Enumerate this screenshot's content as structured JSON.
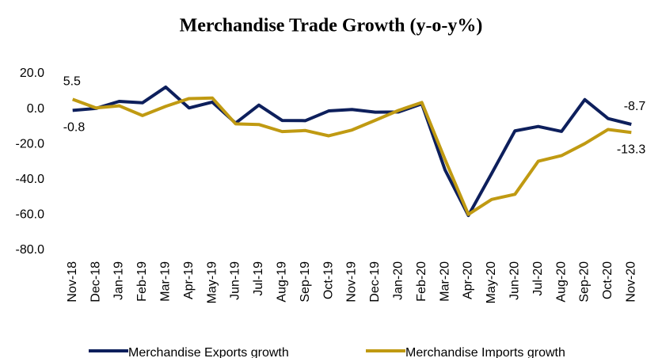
{
  "chart_data": {
    "type": "line",
    "title": "Merchandise Trade Growth (y-o-y%)",
    "categories": [
      "Nov-18",
      "Dec-18",
      "Jan-19",
      "Feb-19",
      "Mar-19",
      "Apr-19",
      "May-19",
      "Jun-19",
      "Jul-19",
      "Aug-19",
      "Sep-19",
      "Oct-19",
      "Nov-19",
      "Dec-19",
      "Jan-20",
      "Feb-20",
      "Mar-20",
      "Apr-20",
      "May-20",
      "Jun-20",
      "Jul-20",
      "Aug-20",
      "Sep-20",
      "Oct-20",
      "Nov-20"
    ],
    "series": [
      {
        "name": "Merchandise Exports growth",
        "color": "#0d1f5c",
        "values": [
          -0.8,
          0.3,
          4.3,
          3.5,
          12.4,
          0.6,
          3.9,
          -8.0,
          2.2,
          -6.5,
          -6.6,
          -1.1,
          -0.3,
          -1.8,
          -1.7,
          2.9,
          -34.6,
          -60.3,
          -36.5,
          -12.4,
          -9.9,
          -12.7,
          5.3,
          -5.4,
          -8.7
        ],
        "value_labels": [
          "-0.8",
          null,
          null,
          null,
          null,
          null,
          null,
          null,
          null,
          null,
          null,
          null,
          null,
          null,
          null,
          null,
          null,
          null,
          null,
          null,
          null,
          null,
          null,
          null,
          "-8.7"
        ]
      },
      {
        "name": "Merchandise Imports growth",
        "color": "#c09a12",
        "values": [
          5.5,
          0.6,
          1.8,
          -3.7,
          1.5,
          5.9,
          6.2,
          -8.4,
          -8.8,
          -12.8,
          -12.2,
          -15.2,
          -11.9,
          -6.4,
          -0.8,
          3.7,
          -28.7,
          -59.7,
          -51.2,
          -48.3,
          -29.6,
          -26.4,
          -19.6,
          -11.6,
          -13.3
        ],
        "value_labels": [
          "5.5",
          null,
          null,
          null,
          null,
          null,
          null,
          null,
          null,
          null,
          null,
          null,
          null,
          null,
          null,
          null,
          null,
          null,
          null,
          null,
          null,
          null,
          null,
          null,
          "-13.3"
        ]
      }
    ],
    "ylim": [
      -80,
      20
    ],
    "yticks": [
      {
        "value": -80,
        "label": "-80.0"
      },
      {
        "value": -60,
        "label": "-60.0"
      },
      {
        "value": -40,
        "label": "-40.0"
      },
      {
        "value": -20,
        "label": "-20.0"
      },
      {
        "value": 0,
        "label": "0.0"
      },
      {
        "value": 20,
        "label": "20.0"
      }
    ],
    "grid": false,
    "legend": "bottom"
  }
}
